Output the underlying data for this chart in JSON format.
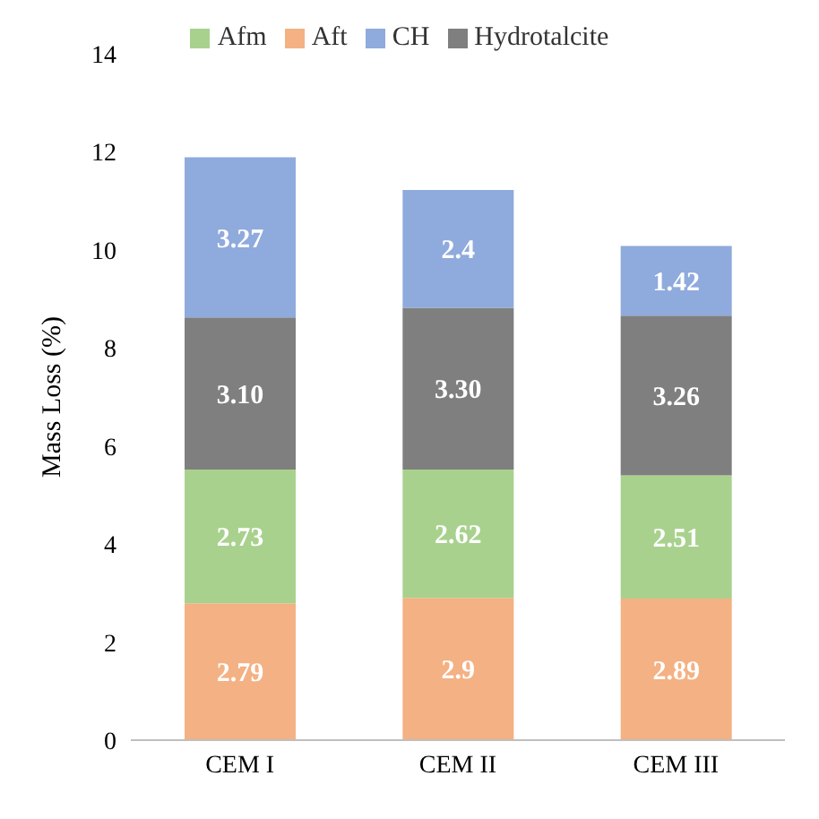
{
  "chart_data": {
    "type": "bar",
    "ylabel": "Mass Loss (%)",
    "categories": [
      "CEM I",
      "CEM II",
      "CEM III"
    ],
    "stacked": true,
    "ylim": [
      0,
      14
    ],
    "yticks": [
      0,
      2,
      4,
      6,
      8,
      10,
      12,
      14
    ],
    "grid": false,
    "legend": "top",
    "series": [
      {
        "name": "Aft",
        "color": "#f4b183",
        "values": [
          2.79,
          2.9,
          2.89
        ],
        "value_labels": [
          "2.79",
          "2.9",
          "2.89"
        ]
      },
      {
        "name": "Afm",
        "color": "#a9d18e",
        "values": [
          2.73,
          2.62,
          2.51
        ],
        "value_labels": [
          "2.73",
          "2.62",
          "2.51"
        ]
      },
      {
        "name": "Hydrotalcite",
        "color": "#7f7f7f",
        "values": [
          3.1,
          3.3,
          3.26
        ],
        "value_labels": [
          "3.10",
          "3.30",
          "3.26"
        ]
      },
      {
        "name": "CH",
        "color": "#8faadc",
        "values": [
          3.27,
          2.4,
          1.42
        ],
        "value_labels": [
          "3.27",
          "2.4",
          "1.42"
        ]
      }
    ]
  }
}
